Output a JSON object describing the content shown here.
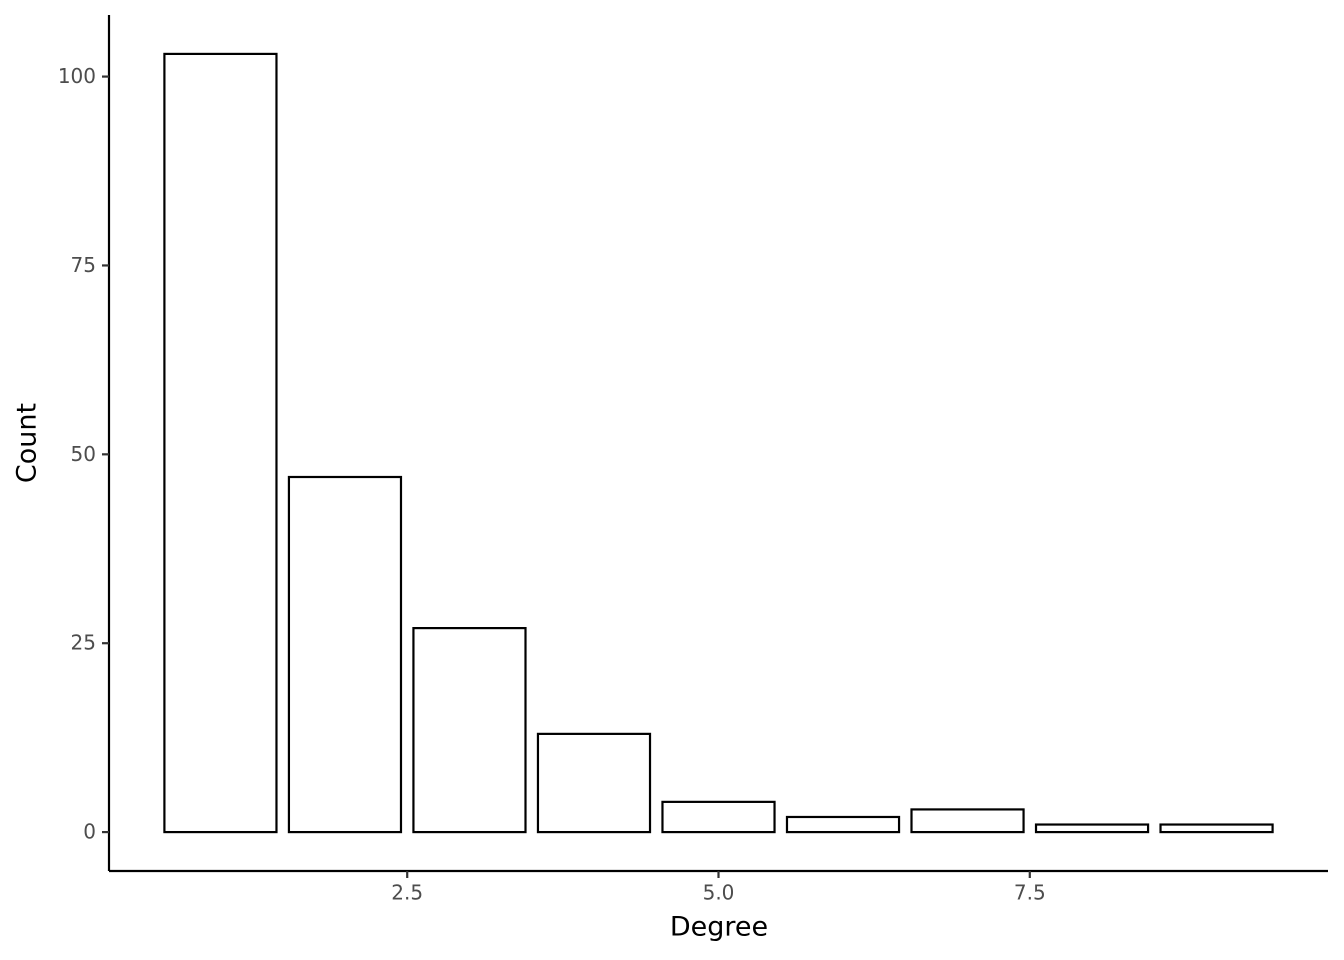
{
  "chart_data": {
    "type": "bar",
    "x_label": "Degree",
    "y_label": "Count",
    "x": [
      1,
      2,
      3,
      4,
      5,
      6,
      7,
      8,
      9
    ],
    "values": [
      103,
      47,
      27,
      13,
      4,
      2,
      3,
      1,
      1
    ],
    "color": "#ffffff",
    "edge_color": "#000000",
    "xlim": [
      0.105,
      9.895
    ],
    "xticks": [
      2.5,
      {
        "value": 5,
        "label": "5.0"
      },
      7.5
    ],
    "ylim": [
      -5.15,
      108.15
    ],
    "yticks": [
      0,
      25,
      50,
      75,
      100
    ],
    "grid": false
  }
}
